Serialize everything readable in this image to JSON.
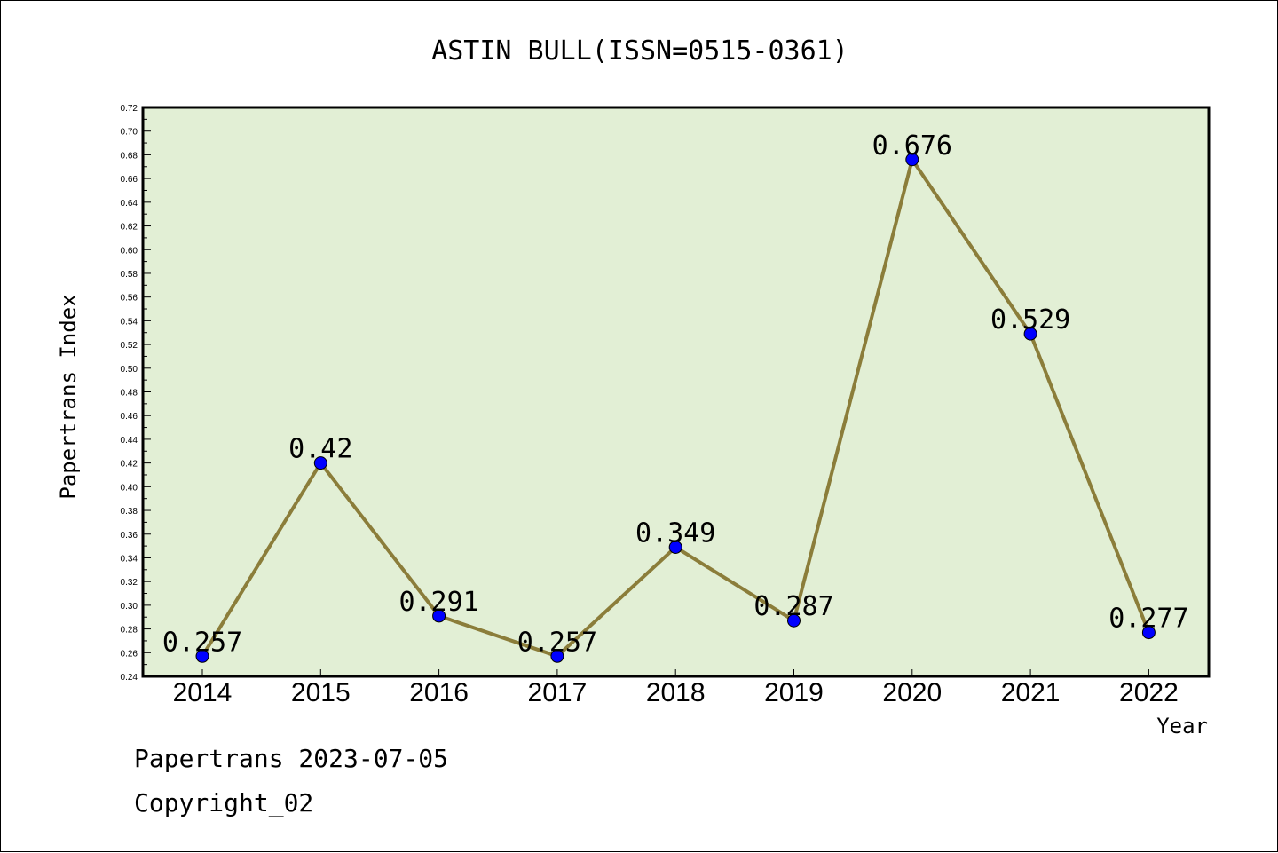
{
  "chart_data": {
    "type": "line",
    "title": "ASTIN BULL(ISSN=0515-0361)",
    "xlabel": "Year",
    "ylabel": "Papertrans Index",
    "categories": [
      "2014",
      "2015",
      "2016",
      "2017",
      "2018",
      "2019",
      "2020",
      "2021",
      "2022"
    ],
    "values": [
      0.257,
      0.42,
      0.291,
      0.257,
      0.349,
      0.287,
      0.676,
      0.529,
      0.277
    ],
    "data_labels": [
      "0.257",
      "0.42",
      "0.291",
      "0.257",
      "0.349",
      "0.287",
      "0.676",
      "0.529",
      "0.277"
    ],
    "ylim": [
      0.24,
      0.72
    ],
    "yticks": [
      "0.24",
      "0.26",
      "0.28",
      "0.30",
      "0.32",
      "0.34",
      "0.36",
      "0.38",
      "0.40",
      "0.42",
      "0.44",
      "0.46",
      "0.48",
      "0.50",
      "0.52",
      "0.54",
      "0.56",
      "0.58",
      "0.60",
      "0.62",
      "0.64",
      "0.66",
      "0.68",
      "0.70",
      "0.72"
    ],
    "grid": false,
    "colors": {
      "plot_background": "#e2efd5",
      "line": "#8b7d3a",
      "marker": "#0000ff"
    }
  },
  "footer": {
    "line1": "Papertrans 2023-07-05",
    "line2": "Copyright_02"
  }
}
